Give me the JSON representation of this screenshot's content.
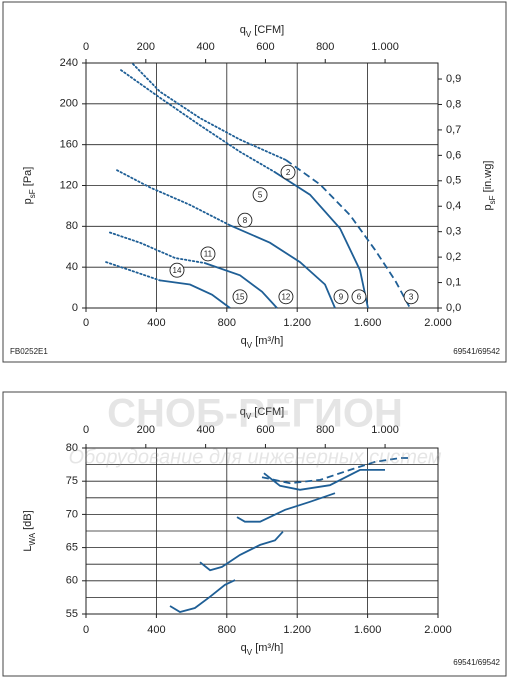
{
  "watermark": {
    "title": "СНОБ-РЕГИОН",
    "subtitle": "Оборудование для инженерных систем"
  },
  "chart_data": [
    {
      "type": "line",
      "x_label": [
        {
          "text": "q"
        },
        {
          "text": "V",
          "sub": true
        },
        {
          "text": " [m³/h]"
        }
      ],
      "x2_label": [
        {
          "text": "q"
        },
        {
          "text": "V",
          "sub": true
        },
        {
          "text": " [CFM]"
        }
      ],
      "y_label": [
        {
          "text": "p"
        },
        {
          "text": "sF",
          "sub": true
        },
        {
          "text": " [Pa]"
        }
      ],
      "y2_label": [
        {
          "text": "p"
        },
        {
          "text": "sF",
          "sub": true
        },
        {
          "text": " [in.wg]"
        }
      ],
      "code_left": "FB0252E1",
      "code_right": "69541/69542",
      "xlim": [
        0,
        2000
      ],
      "xticks": [
        0,
        400,
        800,
        {
          "value": 1200,
          "label": "1.200"
        },
        {
          "value": 1600,
          "label": "1.600"
        },
        {
          "value": 2000,
          "label": "2.000"
        }
      ],
      "x2lim": [
        0,
        1177
      ],
      "x2ticks": [
        0,
        200,
        400,
        600,
        800,
        {
          "value": 1000,
          "label": "1.000"
        }
      ],
      "ylim": [
        0,
        240
      ],
      "yticks": [
        0,
        40,
        80,
        120,
        160,
        200,
        240
      ],
      "y2lim": [
        0,
        0.963
      ],
      "y2ticks": [
        {
          "value": 0,
          "label": "0,0"
        },
        {
          "value": 0.1,
          "label": "0,1"
        },
        {
          "value": 0.2,
          "label": "0,2"
        },
        {
          "value": 0.3,
          "label": "0,3"
        },
        {
          "value": 0.4,
          "label": "0,4"
        },
        {
          "value": 0.5,
          "label": "0,5"
        },
        {
          "value": 0.6,
          "label": "0,6"
        },
        {
          "value": 0.7,
          "label": "0,7"
        },
        {
          "value": 0.8,
          "label": "0,8"
        },
        {
          "value": 0.9,
          "label": "0,9"
        }
      ],
      "grid": true,
      "series": [
        {
          "style": "dotted",
          "color": "#1f5f96",
          "x": [
            267,
            420,
            648,
            875,
            1136
          ],
          "values": [
            239,
            212,
            186,
            165,
            145
          ]
        },
        {
          "style": "dashed",
          "color": "#1f5f96",
          "x": [
            1136,
            1330,
            1500,
            1642,
            1756,
            1841
          ],
          "values": [
            145,
            121,
            91,
            57,
            27,
            0
          ]
        },
        {
          "style": "dotted",
          "color": "#1f5f96",
          "x": [
            199,
            420,
            648,
            875,
            1074
          ],
          "values": [
            233,
            206,
            179,
            153,
            133
          ]
        },
        {
          "style": "solid",
          "color": "#1f5f96",
          "x": [
            1074,
            1273,
            1443,
            1557,
            1602
          ],
          "values": [
            133,
            111,
            78,
            37,
            0
          ]
        },
        {
          "style": "dotted",
          "color": "#1f5f96",
          "x": [
            176,
            364,
            591,
            818
          ],
          "values": [
            135,
            118,
            101,
            81
          ]
        },
        {
          "style": "solid",
          "color": "#1f5f96",
          "x": [
            818,
            1045,
            1216,
            1358,
            1415
          ],
          "values": [
            81,
            64,
            45,
            23,
            0
          ]
        },
        {
          "style": "dotted",
          "color": "#1f5f96",
          "x": [
            136,
            307,
            506,
            676
          ],
          "values": [
            74,
            64,
            49,
            44
          ]
        },
        {
          "style": "solid",
          "color": "#1f5f96",
          "x": [
            676,
            875,
            1000,
            1085
          ],
          "values": [
            44,
            32,
            16,
            0
          ]
        },
        {
          "style": "dotted",
          "color": "#1f5f96",
          "x": [
            114,
            250,
            420
          ],
          "values": [
            45,
            37,
            27
          ]
        },
        {
          "style": "solid",
          "color": "#1f5f96",
          "x": [
            420,
            591,
            716,
            818
          ],
          "values": [
            27,
            23,
            13,
            0
          ]
        }
      ],
      "annotations": [
        {
          "text": "2",
          "x": 1148,
          "y": 133
        },
        {
          "text": "5",
          "x": 989,
          "y": 111
        },
        {
          "text": "8",
          "x": 903,
          "y": 86
        },
        {
          "text": "11",
          "x": 693,
          "y": 53
        },
        {
          "text": "14",
          "x": 517,
          "y": 37
        },
        {
          "text": "15",
          "x": 875,
          "y": 11
        },
        {
          "text": "12",
          "x": 1136,
          "y": 11
        },
        {
          "text": "9",
          "x": 1449,
          "y": 11
        },
        {
          "text": "6",
          "x": 1551,
          "y": 11
        },
        {
          "text": "3",
          "x": 1847,
          "y": 11
        }
      ]
    },
    {
      "type": "line",
      "x_label": [
        {
          "text": "q"
        },
        {
          "text": "V",
          "sub": true
        },
        {
          "text": " [m³/h]"
        }
      ],
      "x2_label": [
        {
          "text": "q"
        },
        {
          "text": "V",
          "sub": true
        },
        {
          "text": " [CFM]"
        }
      ],
      "y_label": [
        {
          "text": "L"
        },
        {
          "text": "WA",
          "sub": true
        },
        {
          "text": " [dB]"
        }
      ],
      "code_right": "69541/69542",
      "xlim": [
        0,
        2000
      ],
      "xticks": [
        0,
        400,
        800,
        {
          "value": 1200,
          "label": "1.200"
        },
        {
          "value": 1600,
          "label": "1.600"
        },
        {
          "value": 2000,
          "label": "2.000"
        }
      ],
      "x2lim": [
        0,
        1177
      ],
      "x2ticks": [
        0,
        200,
        400,
        600,
        800,
        {
          "value": 1000,
          "label": "1.000"
        }
      ],
      "ylim": [
        55,
        80
      ],
      "yticks": [
        55,
        60,
        65,
        70,
        75,
        80
      ],
      "ygrid": [
        55,
        57.5,
        60,
        62.5,
        65,
        67.5,
        70,
        72.5,
        75,
        77.5,
        80
      ],
      "grid": true,
      "series": [
        {
          "style": "solid",
          "color": "#1f5f96",
          "x": [
            477,
            534,
            619,
            705,
            790,
            847
          ],
          "values": [
            56.2,
            55.3,
            55.9,
            57.6,
            59.4,
            60.1
          ]
        },
        {
          "style": "solid",
          "color": "#1f5f96",
          "x": [
            648,
            705,
            773,
            875,
            989,
            1074,
            1119
          ],
          "values": [
            62.8,
            61.6,
            62.1,
            63.9,
            65.4,
            66.1,
            67.4
          ]
        },
        {
          "style": "solid",
          "color": "#1f5f96",
          "x": [
            858,
            903,
            989,
            1131,
            1273,
            1415
          ],
          "values": [
            69.6,
            68.9,
            68.9,
            70.7,
            71.9,
            73.2
          ]
        },
        {
          "style": "solid",
          "color": "#1f5f96",
          "x": [
            1011,
            1102,
            1216,
            1386,
            1557,
            1699
          ],
          "values": [
            76.2,
            74.3,
            73.7,
            74.4,
            76.7,
            76.7
          ]
        },
        {
          "style": "dashed",
          "color": "#1f5f96",
          "x": [
            1000,
            1159,
            1330,
            1500,
            1642,
            1784,
            1852
          ],
          "values": [
            75.6,
            74.7,
            75.2,
            76.7,
            77.9,
            78.5,
            78.5
          ]
        }
      ]
    }
  ]
}
